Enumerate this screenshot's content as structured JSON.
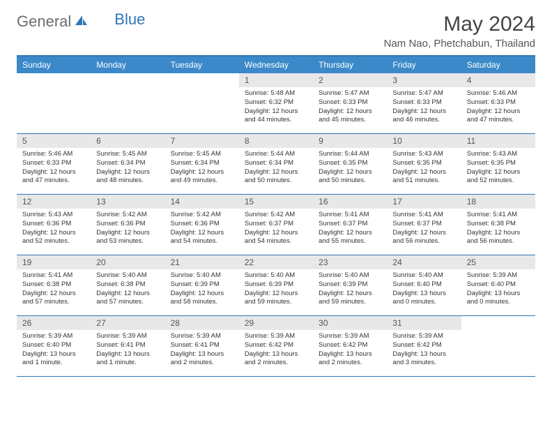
{
  "logo": {
    "general": "General",
    "blue": "Blue"
  },
  "title": "May 2024",
  "location": "Nam Nao, Phetchabun, Thailand",
  "colors": {
    "header_bg": "#3b89c9",
    "header_border": "#2f76b8",
    "daynum_bg": "#e8e8e8",
    "text": "#333333",
    "logo_gray": "#6d6d6d",
    "logo_blue": "#2f76b8"
  },
  "day_names": [
    "Sunday",
    "Monday",
    "Tuesday",
    "Wednesday",
    "Thursday",
    "Friday",
    "Saturday"
  ],
  "weeks": [
    [
      {
        "n": "",
        "sr": "",
        "ss": "",
        "dl": ""
      },
      {
        "n": "",
        "sr": "",
        "ss": "",
        "dl": ""
      },
      {
        "n": "",
        "sr": "",
        "ss": "",
        "dl": ""
      },
      {
        "n": "1",
        "sr": "Sunrise: 5:48 AM",
        "ss": "Sunset: 6:32 PM",
        "dl": "Daylight: 12 hours and 44 minutes."
      },
      {
        "n": "2",
        "sr": "Sunrise: 5:47 AM",
        "ss": "Sunset: 6:33 PM",
        "dl": "Daylight: 12 hours and 45 minutes."
      },
      {
        "n": "3",
        "sr": "Sunrise: 5:47 AM",
        "ss": "Sunset: 6:33 PM",
        "dl": "Daylight: 12 hours and 46 minutes."
      },
      {
        "n": "4",
        "sr": "Sunrise: 5:46 AM",
        "ss": "Sunset: 6:33 PM",
        "dl": "Daylight: 12 hours and 47 minutes."
      }
    ],
    [
      {
        "n": "5",
        "sr": "Sunrise: 5:46 AM",
        "ss": "Sunset: 6:33 PM",
        "dl": "Daylight: 12 hours and 47 minutes."
      },
      {
        "n": "6",
        "sr": "Sunrise: 5:45 AM",
        "ss": "Sunset: 6:34 PM",
        "dl": "Daylight: 12 hours and 48 minutes."
      },
      {
        "n": "7",
        "sr": "Sunrise: 5:45 AM",
        "ss": "Sunset: 6:34 PM",
        "dl": "Daylight: 12 hours and 49 minutes."
      },
      {
        "n": "8",
        "sr": "Sunrise: 5:44 AM",
        "ss": "Sunset: 6:34 PM",
        "dl": "Daylight: 12 hours and 50 minutes."
      },
      {
        "n": "9",
        "sr": "Sunrise: 5:44 AM",
        "ss": "Sunset: 6:35 PM",
        "dl": "Daylight: 12 hours and 50 minutes."
      },
      {
        "n": "10",
        "sr": "Sunrise: 5:43 AM",
        "ss": "Sunset: 6:35 PM",
        "dl": "Daylight: 12 hours and 51 minutes."
      },
      {
        "n": "11",
        "sr": "Sunrise: 5:43 AM",
        "ss": "Sunset: 6:35 PM",
        "dl": "Daylight: 12 hours and 52 minutes."
      }
    ],
    [
      {
        "n": "12",
        "sr": "Sunrise: 5:43 AM",
        "ss": "Sunset: 6:36 PM",
        "dl": "Daylight: 12 hours and 52 minutes."
      },
      {
        "n": "13",
        "sr": "Sunrise: 5:42 AM",
        "ss": "Sunset: 6:36 PM",
        "dl": "Daylight: 12 hours and 53 minutes."
      },
      {
        "n": "14",
        "sr": "Sunrise: 5:42 AM",
        "ss": "Sunset: 6:36 PM",
        "dl": "Daylight: 12 hours and 54 minutes."
      },
      {
        "n": "15",
        "sr": "Sunrise: 5:42 AM",
        "ss": "Sunset: 6:37 PM",
        "dl": "Daylight: 12 hours and 54 minutes."
      },
      {
        "n": "16",
        "sr": "Sunrise: 5:41 AM",
        "ss": "Sunset: 6:37 PM",
        "dl": "Daylight: 12 hours and 55 minutes."
      },
      {
        "n": "17",
        "sr": "Sunrise: 5:41 AM",
        "ss": "Sunset: 6:37 PM",
        "dl": "Daylight: 12 hours and 56 minutes."
      },
      {
        "n": "18",
        "sr": "Sunrise: 5:41 AM",
        "ss": "Sunset: 6:38 PM",
        "dl": "Daylight: 12 hours and 56 minutes."
      }
    ],
    [
      {
        "n": "19",
        "sr": "Sunrise: 5:41 AM",
        "ss": "Sunset: 6:38 PM",
        "dl": "Daylight: 12 hours and 57 minutes."
      },
      {
        "n": "20",
        "sr": "Sunrise: 5:40 AM",
        "ss": "Sunset: 6:38 PM",
        "dl": "Daylight: 12 hours and 57 minutes."
      },
      {
        "n": "21",
        "sr": "Sunrise: 5:40 AM",
        "ss": "Sunset: 6:39 PM",
        "dl": "Daylight: 12 hours and 58 minutes."
      },
      {
        "n": "22",
        "sr": "Sunrise: 5:40 AM",
        "ss": "Sunset: 6:39 PM",
        "dl": "Daylight: 12 hours and 59 minutes."
      },
      {
        "n": "23",
        "sr": "Sunrise: 5:40 AM",
        "ss": "Sunset: 6:39 PM",
        "dl": "Daylight: 12 hours and 59 minutes."
      },
      {
        "n": "24",
        "sr": "Sunrise: 5:40 AM",
        "ss": "Sunset: 6:40 PM",
        "dl": "Daylight: 13 hours and 0 minutes."
      },
      {
        "n": "25",
        "sr": "Sunrise: 5:39 AM",
        "ss": "Sunset: 6:40 PM",
        "dl": "Daylight: 13 hours and 0 minutes."
      }
    ],
    [
      {
        "n": "26",
        "sr": "Sunrise: 5:39 AM",
        "ss": "Sunset: 6:40 PM",
        "dl": "Daylight: 13 hours and 1 minute."
      },
      {
        "n": "27",
        "sr": "Sunrise: 5:39 AM",
        "ss": "Sunset: 6:41 PM",
        "dl": "Daylight: 13 hours and 1 minute."
      },
      {
        "n": "28",
        "sr": "Sunrise: 5:39 AM",
        "ss": "Sunset: 6:41 PM",
        "dl": "Daylight: 13 hours and 2 minutes."
      },
      {
        "n": "29",
        "sr": "Sunrise: 5:39 AM",
        "ss": "Sunset: 6:42 PM",
        "dl": "Daylight: 13 hours and 2 minutes."
      },
      {
        "n": "30",
        "sr": "Sunrise: 5:39 AM",
        "ss": "Sunset: 6:42 PM",
        "dl": "Daylight: 13 hours and 2 minutes."
      },
      {
        "n": "31",
        "sr": "Sunrise: 5:39 AM",
        "ss": "Sunset: 6:42 PM",
        "dl": "Daylight: 13 hours and 3 minutes."
      },
      {
        "n": "",
        "sr": "",
        "ss": "",
        "dl": ""
      }
    ]
  ]
}
